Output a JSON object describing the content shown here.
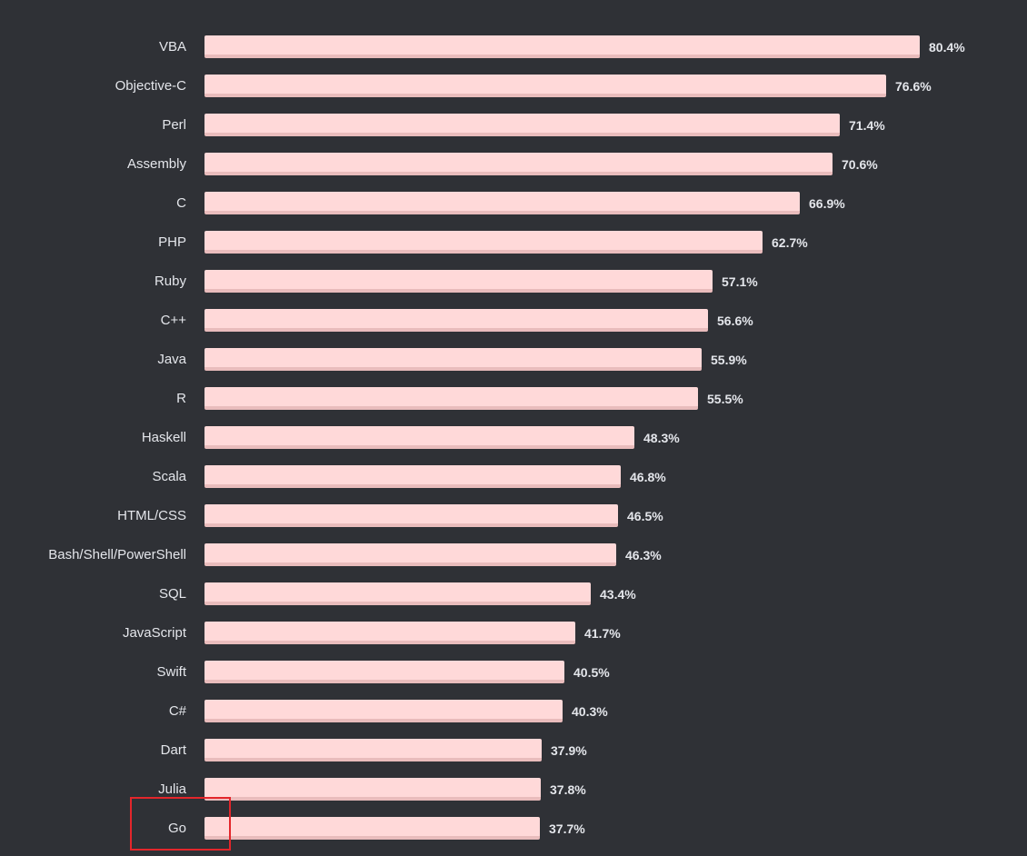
{
  "chart_data": {
    "type": "bar",
    "orientation": "horizontal",
    "categories": [
      "VBA",
      "Objective-C",
      "Perl",
      "Assembly",
      "C",
      "PHP",
      "Ruby",
      "C++",
      "Java",
      "R",
      "Haskell",
      "Scala",
      "HTML/CSS",
      "Bash/Shell/PowerShell",
      "SQL",
      "JavaScript",
      "Swift",
      "C#",
      "Dart",
      "Julia",
      "Go"
    ],
    "values": [
      80.4,
      76.6,
      71.4,
      70.6,
      66.9,
      62.7,
      57.1,
      56.6,
      55.9,
      55.5,
      48.3,
      46.8,
      46.5,
      46.3,
      43.4,
      41.7,
      40.5,
      40.3,
      37.9,
      37.8,
      37.7
    ],
    "value_labels": [
      "80.4%",
      "76.6%",
      "71.4%",
      "70.6%",
      "66.9%",
      "62.7%",
      "57.1%",
      "56.6%",
      "55.9%",
      "55.5%",
      "48.3%",
      "46.8%",
      "46.5%",
      "46.3%",
      "43.4%",
      "41.7%",
      "40.5%",
      "40.3%",
      "37.9%",
      "37.8%",
      "37.7%"
    ],
    "xlim": [
      0,
      80.4
    ],
    "title": "",
    "xlabel": "",
    "ylabel": "",
    "grid": false,
    "highlighted_category": "Go"
  },
  "colors": {
    "background": "#2f3136",
    "bar": "#ffd9d9",
    "bar_shadow": "#e9bcbc",
    "text": "#e4e6eb",
    "highlight": "#e3262b"
  }
}
